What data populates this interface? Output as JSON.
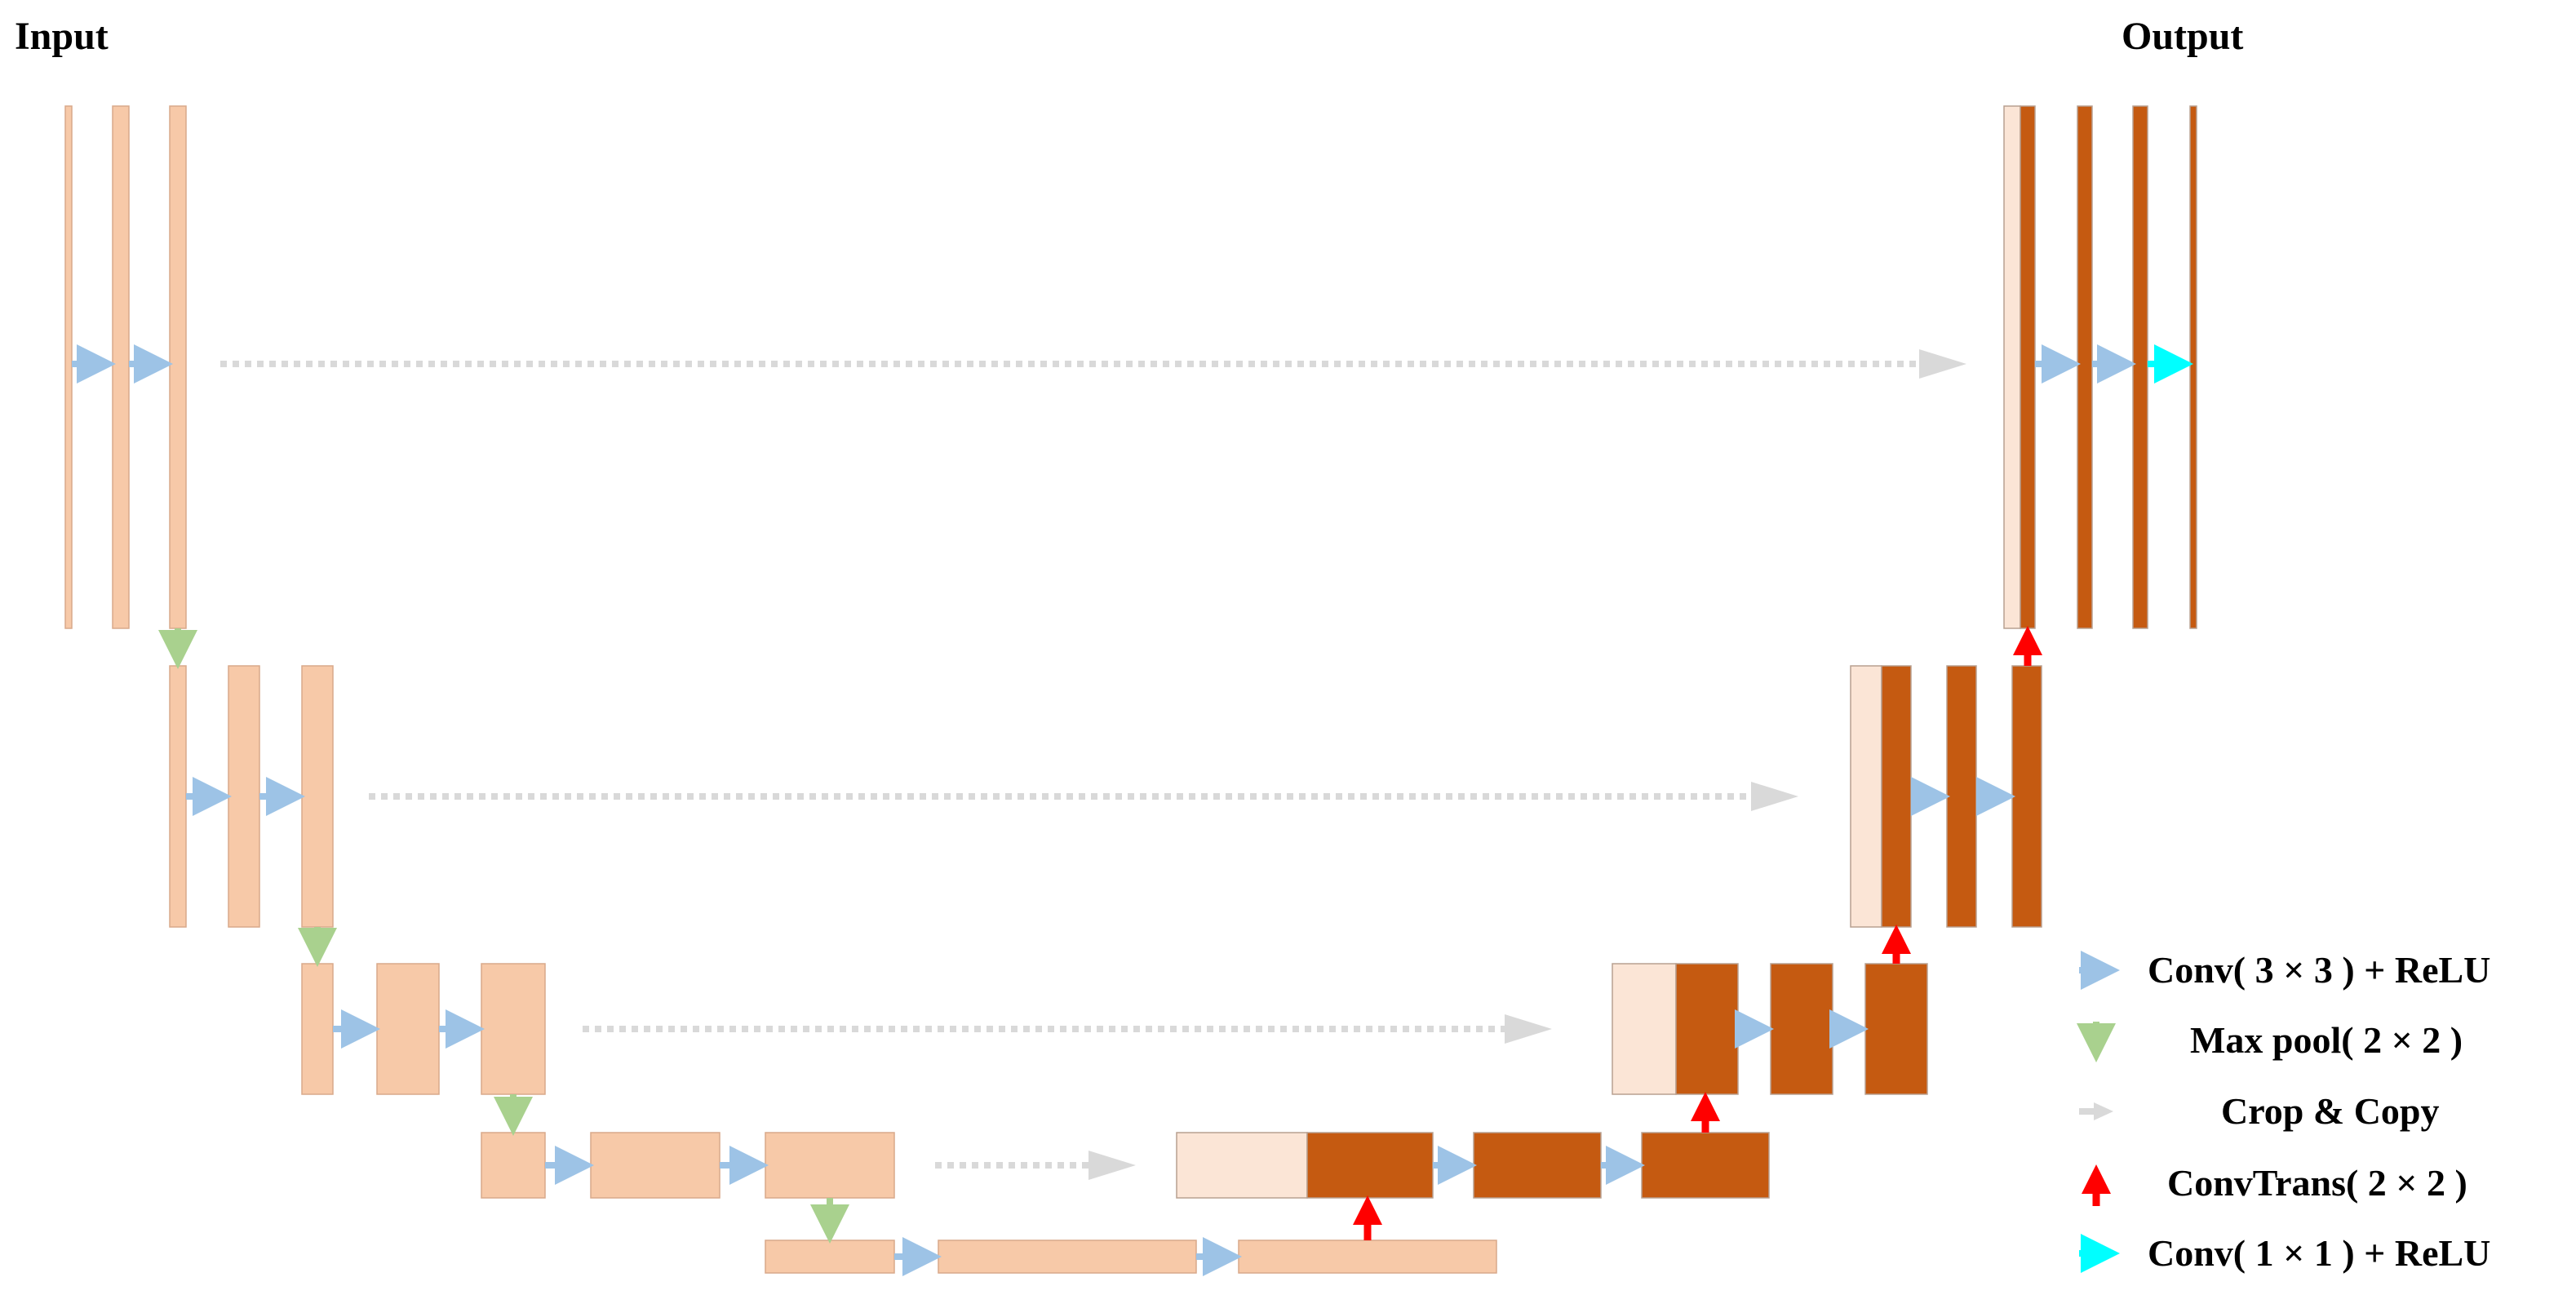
{
  "titles": {
    "input": "Input",
    "output": "Output"
  },
  "colors": {
    "encoder": "#F7C9A8",
    "decoder": "#C55A11",
    "copied": "#FBE5D6",
    "conv_arrow": "#9DC3E6",
    "pool_arrow": "#A9D18E",
    "copy_arrow": "#D9D9D9",
    "up_arrow": "#FF0000",
    "final_arrow": "#00FFFF"
  },
  "legend": [
    {
      "key": "conv",
      "label": "Conv( 3 × 3 ) + ReLU",
      "icon": "blue-arrow-right"
    },
    {
      "key": "pool",
      "label": "Max pool( 2 × 2 )",
      "icon": "green-arrow-down"
    },
    {
      "key": "copy",
      "label": "Crop & Copy",
      "icon": "grey-arrow-right"
    },
    {
      "key": "up",
      "label": "ConvTrans( 2 × 2 )",
      "icon": "red-arrow-up"
    },
    {
      "key": "final",
      "label": "Conv( 1 × 1 ) + ReLU",
      "icon": "cyan-arrow-right"
    }
  ]
}
